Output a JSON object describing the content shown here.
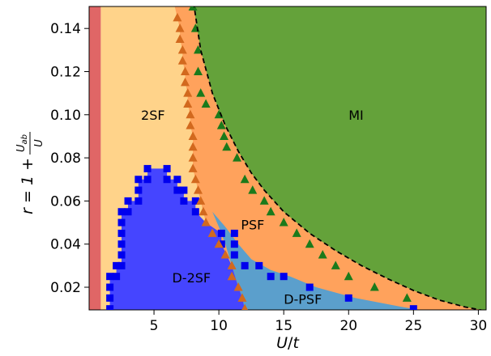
{
  "chart_data": {
    "type": "scatter",
    "title": "",
    "xlabel_parts": [
      "U",
      "/",
      "t"
    ],
    "ylabel_parts": [
      "r = 1 + ",
      "U",
      "ab",
      "U"
    ],
    "xlim": [
      0.0,
      30.6
    ],
    "ylim": [
      0.0095,
      0.1502
    ],
    "x_ticks": [
      5,
      10,
      15,
      20,
      25,
      30
    ],
    "x_tick_labels": [
      "5",
      "10",
      "15",
      "20",
      "25",
      "30"
    ],
    "y_ticks": [
      0.02,
      0.04,
      0.06,
      0.08,
      0.1,
      0.12,
      0.14
    ],
    "y_tick_labels": [
      "0.02",
      "0.04",
      "0.06",
      "0.08",
      "0.10",
      "0.12",
      "0.14"
    ],
    "colors": {
      "sf_red": "#e06666",
      "twoSF": "#ffd38a",
      "psf": "#ffa25c",
      "mi": "#64a23a",
      "d2sf": "#4545ff",
      "dpsf": "#5b9fcc",
      "square_marker": "#0000ee",
      "triangle_orange": "#d2691e",
      "triangle_green": "#1b7a1b"
    },
    "regions": [
      {
        "name": "2SF",
        "label": "2SF",
        "label_at": [
          4.0,
          0.1
        ]
      },
      {
        "name": "MI",
        "label": "MI",
        "label_at": [
          20.0,
          0.1
        ]
      },
      {
        "name": "PSF",
        "label": "PSF",
        "label_at": [
          11.7,
          0.049
        ]
      },
      {
        "name": "D-2SF",
        "label": "D-2SF",
        "label_at": [
          6.4,
          0.0245
        ]
      },
      {
        "name": "D-PSF",
        "label": "D-PSF",
        "label_at": [
          15.0,
          0.0145
        ]
      }
    ],
    "series": [
      {
        "marker": "square",
        "points": [
          [
            1.6,
            0.01
          ],
          [
            1.6,
            0.015
          ],
          [
            1.6,
            0.02
          ],
          [
            1.6,
            0.025
          ],
          [
            2.1,
            0.025
          ],
          [
            2.1,
            0.03
          ],
          [
            2.5,
            0.03
          ],
          [
            2.5,
            0.035
          ],
          [
            2.5,
            0.04
          ],
          [
            2.5,
            0.045
          ],
          [
            2.5,
            0.05
          ],
          [
            2.5,
            0.055
          ],
          [
            3.0,
            0.055
          ],
          [
            3.0,
            0.06
          ],
          [
            3.8,
            0.06
          ],
          [
            3.8,
            0.065
          ],
          [
            3.8,
            0.07
          ],
          [
            4.5,
            0.07
          ],
          [
            4.5,
            0.075
          ],
          [
            6.0,
            0.075
          ],
          [
            6.0,
            0.07
          ],
          [
            6.8,
            0.07
          ],
          [
            6.8,
            0.065
          ],
          [
            7.3,
            0.065
          ],
          [
            7.3,
            0.06
          ],
          [
            8.2,
            0.06
          ],
          [
            8.2,
            0.055
          ],
          [
            10.2,
            0.045
          ],
          [
            10.2,
            0.04
          ],
          [
            11.2,
            0.045
          ],
          [
            11.2,
            0.04
          ],
          [
            11.2,
            0.035
          ],
          [
            12.0,
            0.03
          ],
          [
            13.1,
            0.03
          ],
          [
            14.0,
            0.025
          ],
          [
            15.0,
            0.025
          ],
          [
            17.0,
            0.02
          ],
          [
            20.0,
            0.015
          ],
          [
            25.0,
            0.01
          ]
        ]
      },
      {
        "marker": "triangle",
        "points": [
          [
            6.8,
            0.145
          ],
          [
            7.0,
            0.14
          ],
          [
            7.0,
            0.135
          ],
          [
            7.2,
            0.13
          ],
          [
            7.2,
            0.125
          ],
          [
            7.4,
            0.12
          ],
          [
            7.4,
            0.115
          ],
          [
            7.6,
            0.11
          ],
          [
            7.6,
            0.105
          ],
          [
            7.8,
            0.1
          ],
          [
            7.8,
            0.095
          ],
          [
            8.0,
            0.09
          ],
          [
            8.0,
            0.085
          ],
          [
            8.0,
            0.08
          ],
          [
            8.0,
            0.075
          ],
          [
            8.2,
            0.07
          ],
          [
            8.4,
            0.065
          ],
          [
            8.6,
            0.06
          ],
          [
            8.8,
            0.055
          ],
          [
            9.0,
            0.05
          ],
          [
            9.5,
            0.045
          ],
          [
            10.0,
            0.04
          ],
          [
            10.5,
            0.035
          ],
          [
            11.0,
            0.03
          ],
          [
            11.0,
            0.025
          ],
          [
            11.5,
            0.02
          ],
          [
            11.8,
            0.015
          ],
          [
            12.0,
            0.01
          ]
        ]
      },
      {
        "marker": "triangle",
        "points": [
          [
            8.0,
            0.15
          ],
          [
            8.2,
            0.14
          ],
          [
            8.4,
            0.13
          ],
          [
            8.4,
            0.12
          ],
          [
            8.6,
            0.11
          ],
          [
            9.0,
            0.105
          ],
          [
            10.0,
            0.1
          ],
          [
            10.2,
            0.095
          ],
          [
            10.4,
            0.09
          ],
          [
            10.6,
            0.085
          ],
          [
            11.4,
            0.08
          ],
          [
            12.0,
            0.07
          ],
          [
            12.6,
            0.065
          ],
          [
            13.5,
            0.06
          ],
          [
            14.0,
            0.055
          ],
          [
            15.0,
            0.05
          ],
          [
            16.0,
            0.045
          ],
          [
            17.0,
            0.04
          ],
          [
            18.0,
            0.035
          ],
          [
            19.0,
            0.03
          ],
          [
            20.0,
            0.025
          ],
          [
            22.0,
            0.02
          ],
          [
            24.5,
            0.015
          ]
        ]
      },
      {
        "type": "line",
        "style": "dashed",
        "points": [
          [
            8.05,
            0.152
          ],
          [
            8.6,
            0.13
          ],
          [
            9.5,
            0.11
          ],
          [
            10.5,
            0.095
          ],
          [
            11.5,
            0.083
          ],
          [
            12.5,
            0.073
          ],
          [
            13.5,
            0.065
          ],
          [
            15.0,
            0.055
          ],
          [
            17.0,
            0.045
          ],
          [
            19.0,
            0.037
          ],
          [
            21.0,
            0.03
          ],
          [
            23.0,
            0.024
          ],
          [
            25.0,
            0.0185
          ],
          [
            27.0,
            0.014
          ],
          [
            29.0,
            0.0108
          ],
          [
            30.4,
            0.0092
          ]
        ]
      }
    ]
  }
}
